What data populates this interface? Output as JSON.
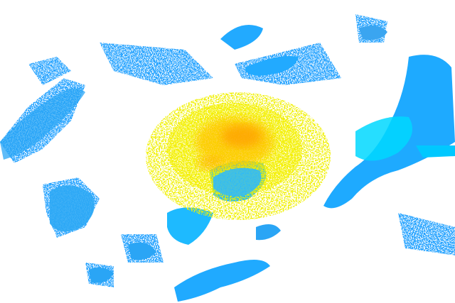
{
  "radar": {
    "background": "#ffffff",
    "colors": {
      "light_blue": "#1e9fff",
      "mid_blue": "#00b4ff",
      "cyan": "#00e5ff",
      "yellow": "#f5f500",
      "gold": "#ffd200",
      "orange": "#ffa000"
    }
  }
}
